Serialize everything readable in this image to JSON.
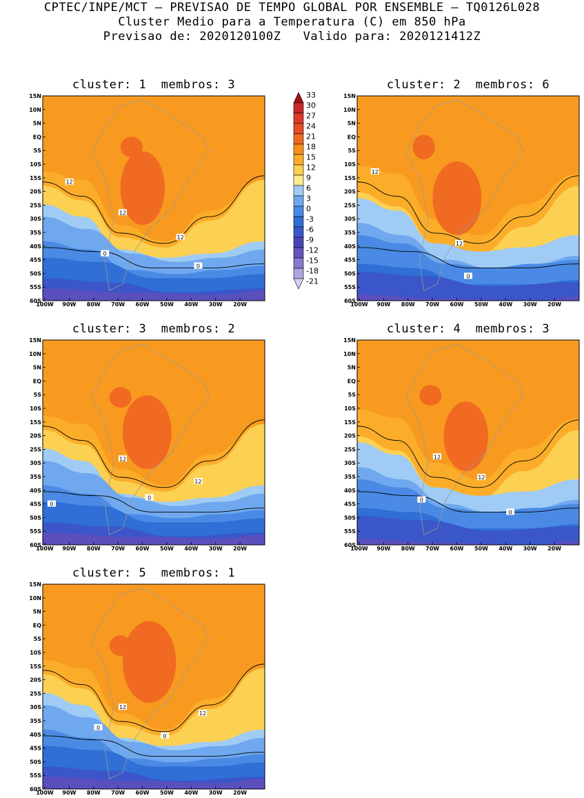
{
  "header": {
    "line1": "CPTEC/INPE/MCT – PREVISAO DE TEMPO GLOBAL POR ENSEMBLE – TQ0126L028",
    "line2": "Cluster Medio para a Temperatura (C) em 850 hPa",
    "line3": "Previsao de: 2020120100Z   Valido para: 2020121412Z"
  },
  "panels": [
    {
      "title": "cluster: 1  membros: 3",
      "contour_labels": [
        "12",
        "12",
        "12",
        "0",
        "0"
      ]
    },
    {
      "title": "cluster: 2  membros: 6",
      "contour_labels": [
        "12",
        "12",
        "0"
      ]
    },
    {
      "title": "cluster: 3  membros: 2",
      "contour_labels": [
        "12",
        "12",
        "0",
        "0"
      ]
    },
    {
      "title": "cluster: 4  membros: 3",
      "contour_labels": [
        "12",
        "12",
        "0",
        "0"
      ]
    },
    {
      "title": "cluster: 5  membros: 1",
      "contour_labels": [
        "12",
        "12",
        "0",
        "0"
      ]
    }
  ],
  "lat_labels": [
    "15N",
    "10N",
    "5N",
    "EQ",
    "5S",
    "10S",
    "15S",
    "20S",
    "25S",
    "30S",
    "35S",
    "40S",
    "45S",
    "50S",
    "55S",
    "60S"
  ],
  "lon_labels": [
    "100W",
    "90W",
    "80W",
    "70W",
    "60W",
    "50W",
    "40W",
    "30W",
    "20W"
  ],
  "colorbar": {
    "levels": [
      "33",
      "30",
      "27",
      "24",
      "21",
      "18",
      "15",
      "12",
      "9",
      "6",
      "3",
      "0",
      "-3",
      "-6",
      "-9",
      "-12",
      "-15",
      "-18",
      "-21"
    ],
    "colors": [
      "#a50f15",
      "#c8282a",
      "#de3a2c",
      "#e84d24",
      "#f06a22",
      "#f88f1a",
      "#fbad2a",
      "#fcd052",
      "#fde98f",
      "#9fcbf5",
      "#6fa8ee",
      "#4a8ae4",
      "#2f6fd6",
      "#3a56c9",
      "#4a45b7",
      "#6354bf",
      "#8a78cf",
      "#b1a2e0",
      "#d8cef0"
    ]
  }
}
